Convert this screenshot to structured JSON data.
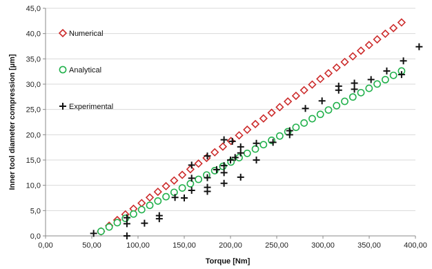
{
  "chart_data": {
    "type": "scatter",
    "xlabel": "Torque [Nm]",
    "ylabel": "Inner tool diameter compression [µm]",
    "xlim": [
      0,
      400
    ],
    "ylim": [
      0,
      45
    ],
    "x_ticks": [
      "0,00",
      "50,00",
      "100,00",
      "150,00",
      "200,00",
      "250,00",
      "300,00",
      "350,00",
      "400,00"
    ],
    "y_ticks": [
      "0,0",
      "5,0",
      "10,0",
      "15,0",
      "20,0",
      "25,0",
      "30,0",
      "35,0",
      "40,0",
      "45,0"
    ],
    "legend_position": "upper-left",
    "series": [
      {
        "name": "Numerical",
        "marker": "diamond",
        "color": "#cc2b2b",
        "x_start": 60,
        "x_end": 385,
        "n_points": 38,
        "y_start": 0.9,
        "y_end": 42.2
      },
      {
        "name": "Analytical",
        "marker": "circle",
        "color": "#22b14c",
        "x_start": 60,
        "x_end": 385,
        "n_points": 38,
        "y_start": 0.9,
        "y_end": 32.6
      },
      {
        "name": "Experimental",
        "marker": "plus",
        "color": "#111111",
        "points": [
          [
            52,
            0.5
          ],
          [
            88,
            0.0
          ],
          [
            88,
            2.4
          ],
          [
            88,
            3.6
          ],
          [
            107,
            2.5
          ],
          [
            123,
            3.4
          ],
          [
            123,
            4.0
          ],
          [
            140,
            7.6
          ],
          [
            150,
            7.5
          ],
          [
            158,
            9.0
          ],
          [
            158,
            11.4
          ],
          [
            158,
            14.0
          ],
          [
            175,
            8.8
          ],
          [
            175,
            9.6
          ],
          [
            175,
            11.5
          ],
          [
            175,
            15.8
          ],
          [
            185,
            13.1
          ],
          [
            193,
            10.4
          ],
          [
            193,
            12.5
          ],
          [
            193,
            13.9
          ],
          [
            193,
            19.0
          ],
          [
            200,
            15.0
          ],
          [
            202,
            18.7
          ],
          [
            205,
            15.5
          ],
          [
            211,
            11.6
          ],
          [
            211,
            16.4
          ],
          [
            211,
            17.6
          ],
          [
            228,
            15.0
          ],
          [
            228,
            18.3
          ],
          [
            246,
            18.5
          ],
          [
            264,
            20.0
          ],
          [
            264,
            20.8
          ],
          [
            281,
            25.2
          ],
          [
            299,
            26.7
          ],
          [
            317,
            28.8
          ],
          [
            317,
            29.6
          ],
          [
            334,
            29.0
          ],
          [
            334,
            30.2
          ],
          [
            352,
            30.9
          ],
          [
            369,
            32.6
          ],
          [
            385,
            31.9
          ],
          [
            387,
            34.6
          ],
          [
            404,
            37.4
          ]
        ]
      }
    ]
  }
}
